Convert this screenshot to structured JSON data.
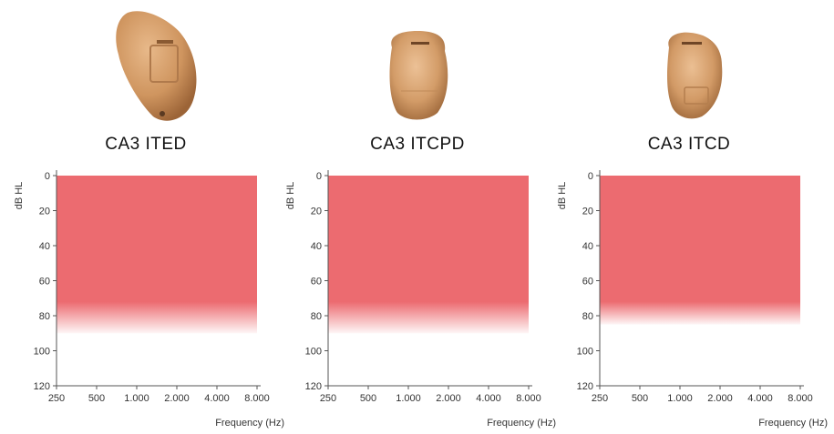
{
  "colors": {
    "fitting_range": "#ec6b70",
    "axis": "#555555",
    "shell": "#d49a68"
  },
  "panels": [
    {
      "model": "CA3 ITED",
      "device_icon": "hearing-aid-ited-shell"
    },
    {
      "model": "CA3 ITCPD",
      "device_icon": "hearing-aid-itcpd-shell"
    },
    {
      "model": "CA3 ITCD",
      "device_icon": "hearing-aid-itcd-shell"
    }
  ],
  "chart_data": [
    {
      "type": "area",
      "title": "CA3 ITED",
      "xlabel": "Frequency (Hz)",
      "ylabel": "dB HL",
      "x_scale": "log",
      "x_ticks": [
        250,
        500,
        1000,
        2000,
        4000,
        8000
      ],
      "x_tick_labels": [
        "250",
        "500",
        "1.000",
        "2.000",
        "4.000",
        "8.000"
      ],
      "y_ticks": [
        0,
        20,
        40,
        60,
        80,
        100,
        120
      ],
      "y_tick_labels": [
        "0",
        "20",
        "40",
        "60",
        "80",
        "100",
        "120"
      ],
      "ylim": [
        0,
        120
      ],
      "y_inverted": true,
      "grid": false,
      "series": [
        {
          "x": [
            250,
            8000
          ],
          "solid_to": 72,
          "fade_to": 90
        }
      ]
    },
    {
      "type": "area",
      "title": "CA3 ITCPD",
      "xlabel": "Frequency (Hz)",
      "ylabel": "dB HL",
      "x_scale": "log",
      "x_ticks": [
        250,
        500,
        1000,
        2000,
        4000,
        8000
      ],
      "x_tick_labels": [
        "250",
        "500",
        "1.000",
        "2.000",
        "4.000",
        "8.000"
      ],
      "y_ticks": [
        0,
        20,
        40,
        60,
        80,
        100,
        120
      ],
      "y_tick_labels": [
        "0",
        "20",
        "40",
        "60",
        "80",
        "100",
        "120"
      ],
      "ylim": [
        0,
        120
      ],
      "y_inverted": true,
      "grid": false,
      "series": [
        {
          "x": [
            250,
            8000
          ],
          "solid_to": 72,
          "fade_to": 90
        }
      ]
    },
    {
      "type": "area",
      "title": "CA3 ITCD",
      "xlabel": "Frequency (Hz)",
      "ylabel": "dB HL",
      "x_scale": "log",
      "x_ticks": [
        250,
        500,
        1000,
        2000,
        4000,
        8000
      ],
      "x_tick_labels": [
        "250",
        "500",
        "1.000",
        "2.000",
        "4.000",
        "8.000"
      ],
      "y_ticks": [
        0,
        20,
        40,
        60,
        80,
        100,
        120
      ],
      "y_tick_labels": [
        "0",
        "20",
        "40",
        "60",
        "80",
        "100",
        "120"
      ],
      "ylim": [
        0,
        120
      ],
      "y_inverted": true,
      "grid": false,
      "series": [
        {
          "x": [
            250,
            8000
          ],
          "solid_to": 72,
          "fade_to": 85
        }
      ]
    }
  ]
}
